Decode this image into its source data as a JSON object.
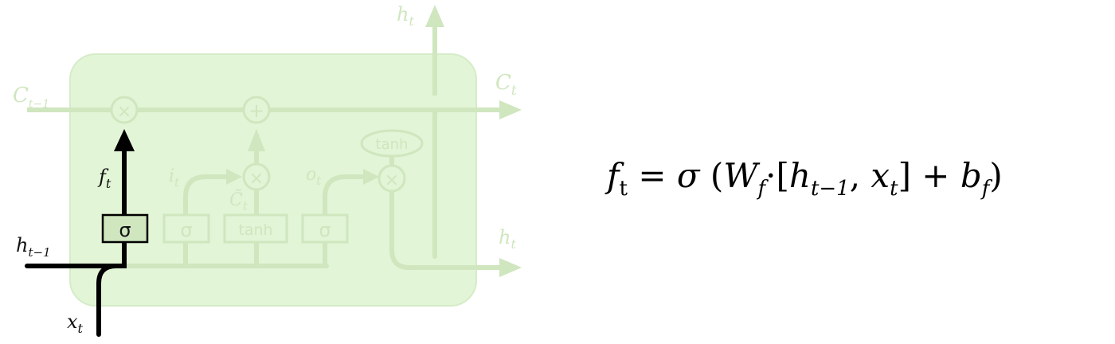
{
  "diagram": {
    "labels": {
      "c_prev": {
        "main": "C",
        "sub": "t−1"
      },
      "c_next": {
        "main": "C",
        "sub": "t"
      },
      "h_top": {
        "main": "h",
        "sub": "t"
      },
      "h_right": {
        "main": "h",
        "sub": "t"
      },
      "h_prev": {
        "main": "h",
        "sub": "t−1"
      },
      "x_in": {
        "main": "x",
        "sub": "t"
      },
      "f_gate": {
        "main": "f",
        "sub": "t"
      },
      "i_gate": {
        "main": "i",
        "sub": "t"
      },
      "o_gate": {
        "main": "o",
        "sub": "t"
      },
      "c_tilde": {
        "main": "C̃",
        "sub": "t"
      }
    },
    "ops": {
      "mult": "×",
      "plus": "+",
      "tanh": "tanh"
    },
    "layers": {
      "forget_sigma": "σ",
      "input_sigma": "σ",
      "tanh_layer": "tanh",
      "output_sigma": "σ"
    },
    "colors": {
      "cell_fill": "#e2f5d6",
      "faded": "#cfe6bf",
      "active": "#000000"
    }
  },
  "equation": {
    "lhs": "f",
    "lhs_sub": "t",
    "equals": " = ",
    "sigma": "σ",
    "open_paren": " (",
    "W": "W",
    "W_sub": "f",
    "dot": "·[",
    "h": "h",
    "h_sub": "t−1",
    "comma": ", ",
    "x": "x",
    "x_sub": "t",
    "close_bracket": "]  +  ",
    "b": "b",
    "b_sub": "f",
    "close_paren": ")"
  }
}
